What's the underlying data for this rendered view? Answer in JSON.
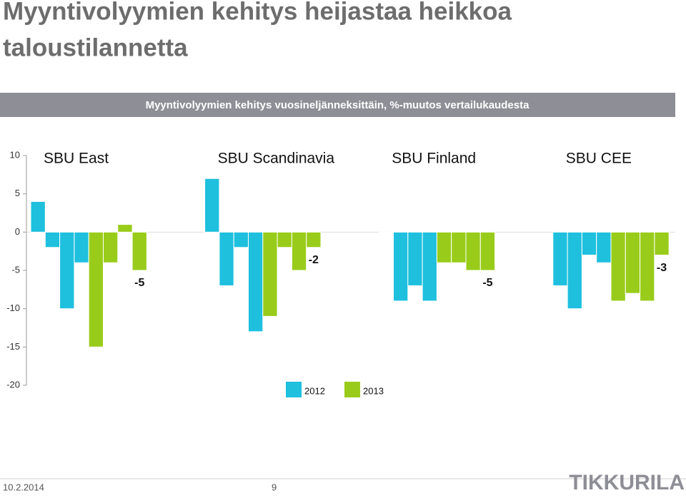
{
  "chart_data": {
    "type": "bar",
    "title_lines": [
      "Myyntivolyymien kehitys heijastaa heikkoa",
      "taloustilannetta"
    ],
    "subtitle": "Myyntivolyymien kehitys vuosineljänneksittäin, %-muutos vertailukaudesta",
    "categories": [
      "SBU East",
      "SBU Scandinavia",
      "SBU Finland",
      "SBU CEE"
    ],
    "series": [
      {
        "name": "2012",
        "color": "#1ec0de",
        "values": [
          [
            4,
            -2,
            -10,
            -4
          ],
          [
            7,
            -7,
            -2,
            -13
          ],
          [
            0,
            -9,
            -7,
            -9
          ],
          [
            -7,
            -10,
            -3,
            -4
          ]
        ]
      },
      {
        "name": "2013",
        "color": "#99cc1a",
        "values": [
          [
            -15,
            -4,
            1,
            -5
          ],
          [
            -11,
            -2,
            -5,
            -2
          ],
          [
            -4,
            -4,
            -5,
            -5
          ],
          [
            -9,
            -8,
            -9,
            -3
          ]
        ]
      }
    ],
    "labeled_series": 1,
    "ylim": [
      -20,
      10
    ],
    "yticks": [
      10,
      5,
      0,
      -5,
      -10,
      -15,
      -20
    ]
  },
  "footer": {
    "date": "10.2.2014",
    "page": "9",
    "logo": "TIKKURILA"
  }
}
